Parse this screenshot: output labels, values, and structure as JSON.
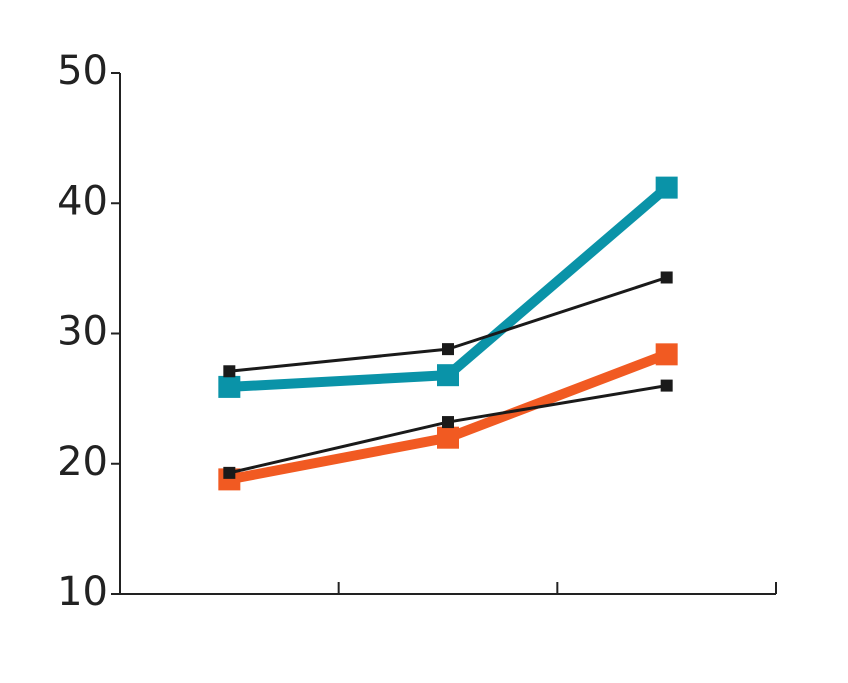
{
  "chart_data": {
    "type": "line",
    "categories": [
      null,
      null,
      null
    ],
    "series": [
      {
        "color": "#0a93a8",
        "values": [
          25.9,
          26.8,
          41.2
        ]
      },
      {
        "color": "#f15a22",
        "values": [
          18.8,
          22.0,
          28.4
        ]
      },
      {
        "color": "#1a1a1a",
        "values": [
          27.1,
          28.8,
          34.3
        ]
      },
      {
        "color": "#1a1a1a",
        "values": [
          19.3,
          23.2,
          26.0
        ]
      }
    ],
    "ylim": [
      10,
      50
    ],
    "yticks": [
      10,
      20,
      30,
      40,
      50
    ]
  }
}
